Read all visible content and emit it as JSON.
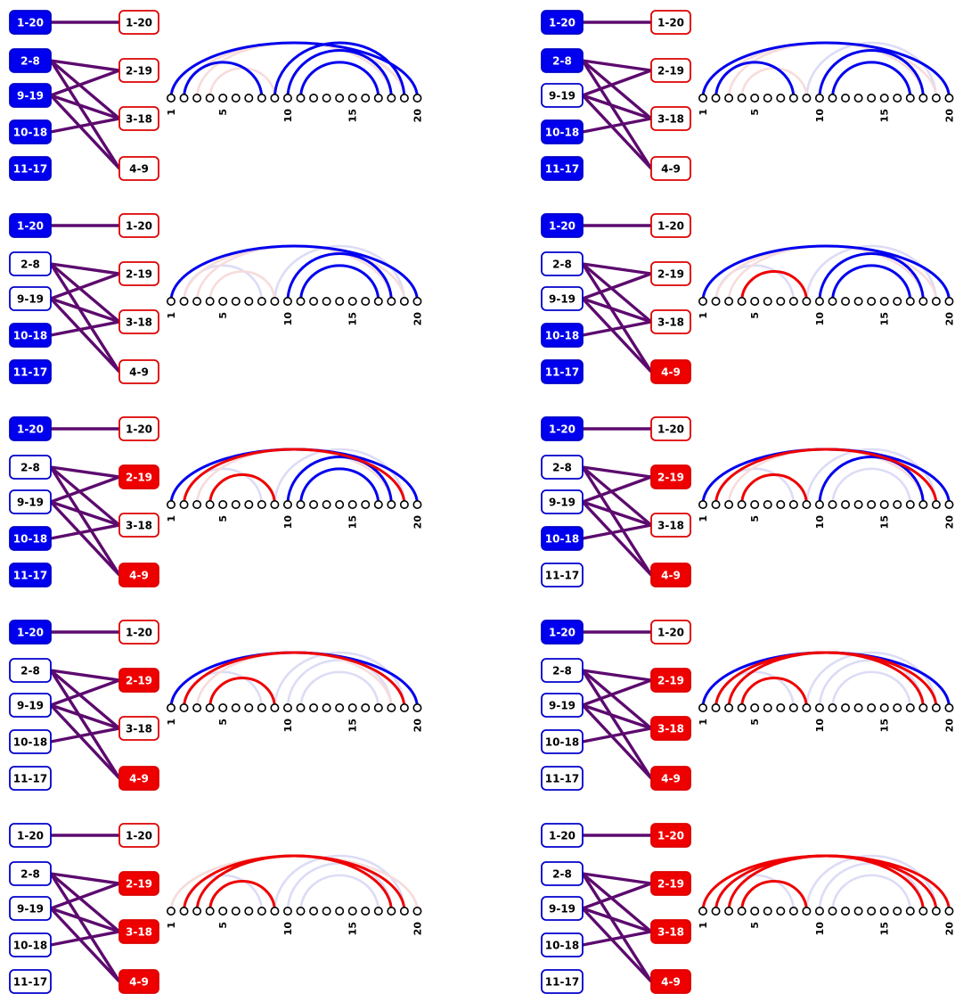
{
  "colors": {
    "blue": "#0000ee",
    "red": "#ee0000",
    "edge": "#5c0a6e",
    "faint_blue": "#dcdcf6",
    "faint_red": "#f7dcdc",
    "faint_mix": "#eadcea",
    "border_blue": "#0000cc",
    "border_red": "#dd0000"
  },
  "left_nodes": [
    "1-20",
    "2-8",
    "9-19",
    "10-18",
    "11-17"
  ],
  "right_nodes": [
    "1-20",
    "2-19",
    "3-18",
    "4-9"
  ],
  "edges": [
    [
      0,
      0
    ],
    [
      1,
      1
    ],
    [
      1,
      2
    ],
    [
      1,
      3
    ],
    [
      2,
      1
    ],
    [
      2,
      2
    ],
    [
      2,
      3
    ],
    [
      3,
      2
    ]
  ],
  "arc_positions": 20,
  "tick_labels": [
    "1",
    "5",
    "10",
    "15",
    "20"
  ],
  "arcs": {
    "left": [
      [
        1,
        20
      ],
      [
        2,
        8
      ],
      [
        9,
        19
      ],
      [
        10,
        18
      ],
      [
        11,
        17
      ]
    ],
    "right": [
      [
        1,
        20
      ],
      [
        2,
        19
      ],
      [
        3,
        18
      ],
      [
        4,
        9
      ]
    ]
  },
  "panels": [
    {
      "left": [
        "B",
        "B",
        "B",
        "B",
        "B"
      ],
      "right": [
        "W",
        "W",
        "W",
        "W"
      ]
    },
    {
      "left": [
        "B",
        "B",
        "W",
        "B",
        "B"
      ],
      "right": [
        "W",
        "W",
        "W",
        "W"
      ]
    },
    {
      "left": [
        "B",
        "W",
        "W",
        "B",
        "B"
      ],
      "right": [
        "W",
        "W",
        "W",
        "W"
      ]
    },
    {
      "left": [
        "B",
        "W",
        "W",
        "B",
        "B"
      ],
      "right": [
        "W",
        "W",
        "W",
        "R"
      ]
    },
    {
      "left": [
        "B",
        "W",
        "W",
        "B",
        "B"
      ],
      "right": [
        "W",
        "R",
        "W",
        "R"
      ]
    },
    {
      "left": [
        "B",
        "W",
        "W",
        "B",
        "W"
      ],
      "right": [
        "W",
        "R",
        "W",
        "R"
      ]
    },
    {
      "left": [
        "B",
        "W",
        "W",
        "W",
        "W"
      ],
      "right": [
        "W",
        "R",
        "W",
        "R"
      ]
    },
    {
      "left": [
        "B",
        "W",
        "W",
        "W",
        "W"
      ],
      "right": [
        "W",
        "R",
        "R",
        "R"
      ]
    },
    {
      "left": [
        "W",
        "W",
        "W",
        "W",
        "W"
      ],
      "right": [
        "W",
        "R",
        "R",
        "R"
      ]
    },
    {
      "left": [
        "W",
        "W",
        "W",
        "W",
        "W"
      ],
      "right": [
        "R",
        "R",
        "R",
        "R"
      ]
    }
  ]
}
